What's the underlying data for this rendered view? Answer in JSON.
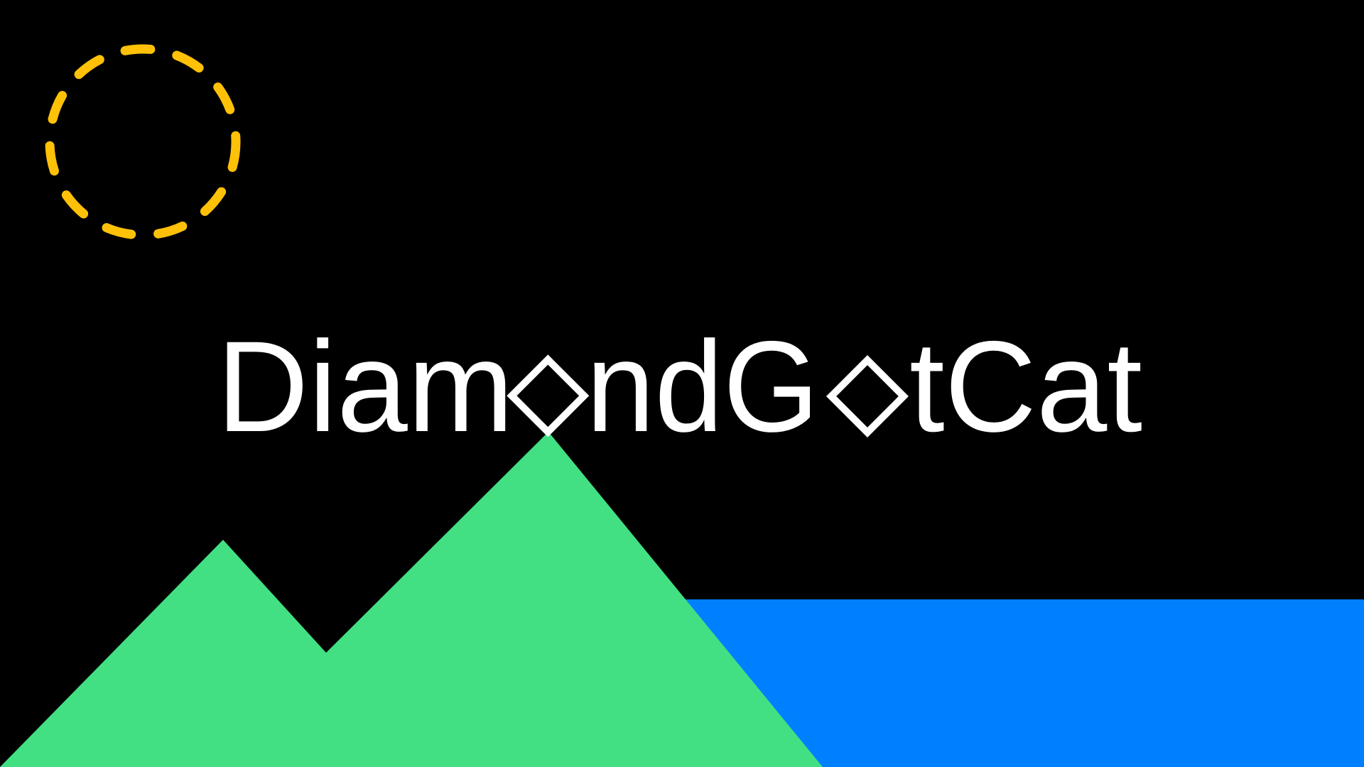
{
  "logo": {
    "segments": [
      "Diam",
      "ndG",
      "tCat"
    ],
    "diamond_glyph": "diamond-outline-icon"
  },
  "colors": {
    "background": "#000000",
    "text": "#ffffff",
    "sun": "#ffc107",
    "mountains": "#42e083",
    "water": "#0080ff"
  },
  "decorations": {
    "sun": "dashed-sun-circle-icon",
    "mountains": "mountain-range-icon",
    "water": "water-band-icon"
  }
}
